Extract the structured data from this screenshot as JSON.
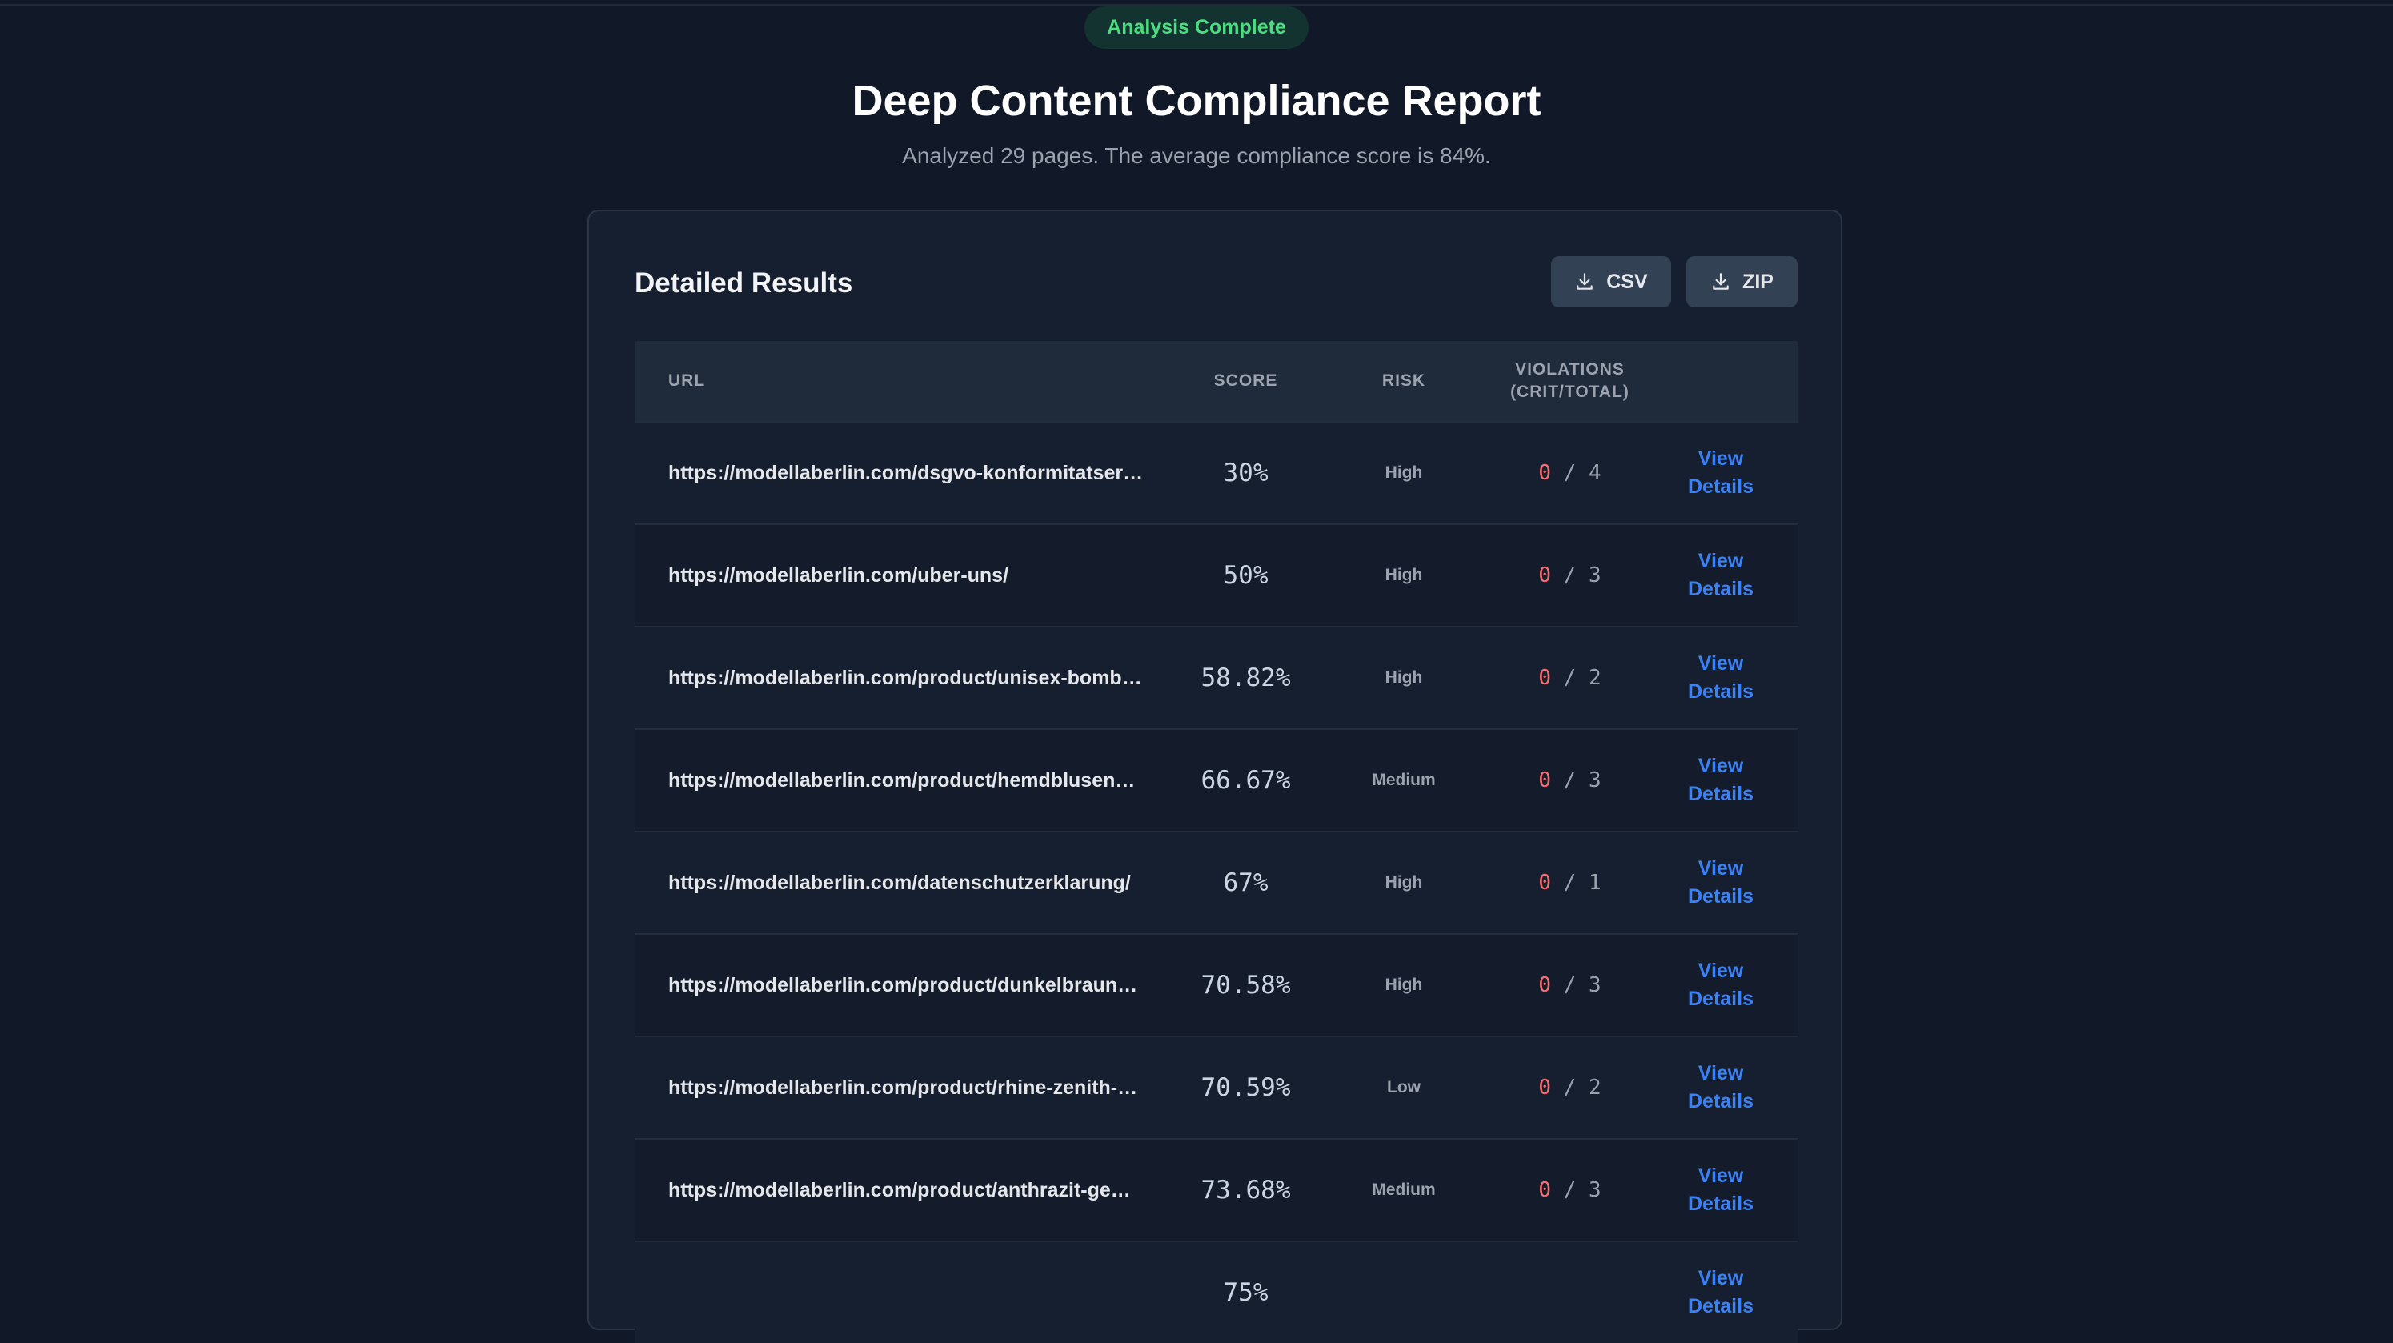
{
  "status_badge": "Analysis Complete",
  "title": "Deep Content Compliance Report",
  "subtitle": "Analyzed 29 pages. The average compliance score is 84%.",
  "card": {
    "title": "Detailed Results",
    "csv_label": "CSV",
    "zip_label": "ZIP"
  },
  "table": {
    "headers": {
      "url": "URL",
      "score": "SCORE",
      "risk": "RISK",
      "violations_line1": "VIOLATIONS",
      "violations_line2": "(CRIT/TOTAL)"
    },
    "rows": [
      {
        "url": "https://modellaberlin.com/dsgvo-konformitatser…",
        "score": "30%",
        "risk": "High",
        "crit": "0",
        "total": "4",
        "action": "View Details"
      },
      {
        "url": "https://modellaberlin.com/uber-uns/",
        "score": "50%",
        "risk": "High",
        "crit": "0",
        "total": "3",
        "action": "View Details"
      },
      {
        "url": "https://modellaberlin.com/product/unisex-bomb…",
        "score": "58.82%",
        "risk": "High",
        "crit": "0",
        "total": "2",
        "action": "View Details"
      },
      {
        "url": "https://modellaberlin.com/product/hemdblusen…",
        "score": "66.67%",
        "risk": "Medium",
        "crit": "0",
        "total": "3",
        "action": "View Details"
      },
      {
        "url": "https://modellaberlin.com/datenschutzerklarung/",
        "score": "67%",
        "risk": "High",
        "crit": "0",
        "total": "1",
        "action": "View Details"
      },
      {
        "url": "https://modellaberlin.com/product/dunkelbraun…",
        "score": "70.58%",
        "risk": "High",
        "crit": "0",
        "total": "3",
        "action": "View Details"
      },
      {
        "url": "https://modellaberlin.com/product/rhine-zenith-…",
        "score": "70.59%",
        "risk": "Low",
        "crit": "0",
        "total": "2",
        "action": "View Details"
      },
      {
        "url": "https://modellaberlin.com/product/anthrazit-ge…",
        "score": "73.68%",
        "risk": "Medium",
        "crit": "0",
        "total": "3",
        "action": "View Details"
      },
      {
        "url": "",
        "score": "75%",
        "risk": "",
        "crit": "",
        "total": "",
        "action": "View Details"
      }
    ]
  },
  "icons": {
    "csv": "download-icon",
    "zip": "download-icon"
  }
}
